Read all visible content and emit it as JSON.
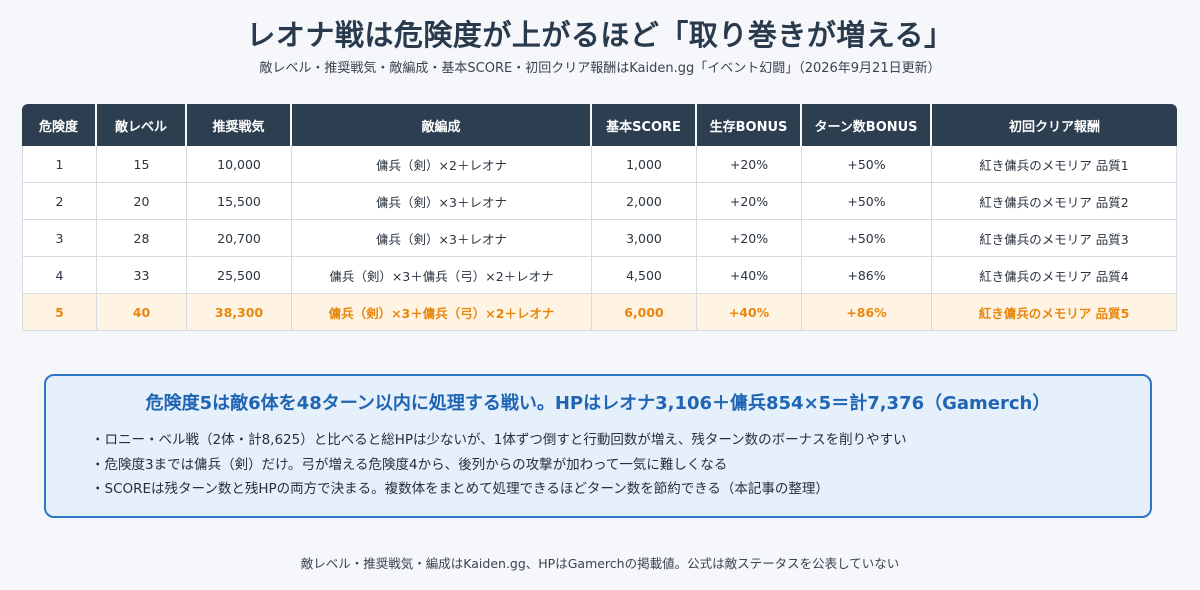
{
  "title": "レオナ戦は危険度が上がるほど「取り巻きが増える」",
  "subtitle": "敵レベル・推奨戦気・敵編成・基本SCORE・初回クリア報酬はKaiden.gg「イベント幻闘」（2026年9月21日更新）",
  "table": {
    "headers": [
      "危険度",
      "敵レベル",
      "推奨戦気",
      "敵編成",
      "基本SCORE",
      "生存BONUS",
      "ターン数BONUS",
      "初回クリア報酬"
    ],
    "rows": [
      [
        "1",
        "15",
        "10,000",
        "傭兵（剣）×2＋レオナ",
        "1,000",
        "+20%",
        "+50%",
        "紅き傭兵のメモリア 品質1"
      ],
      [
        "2",
        "20",
        "15,500",
        "傭兵（剣）×3＋レオナ",
        "2,000",
        "+20%",
        "+50%",
        "紅き傭兵のメモリア 品質2"
      ],
      [
        "3",
        "28",
        "20,700",
        "傭兵（剣）×3＋レオナ",
        "3,000",
        "+20%",
        "+50%",
        "紅き傭兵のメモリア 品質3"
      ],
      [
        "4",
        "33",
        "25,500",
        "傭兵（剣）×3＋傭兵（弓）×2＋レオナ",
        "4,500",
        "+40%",
        "+86%",
        "紅き傭兵のメモリア 品質4"
      ],
      [
        "5",
        "40",
        "38,300",
        "傭兵（剣）×3＋傭兵（弓）×2＋レオナ",
        "6,000",
        "+40%",
        "+86%",
        "紅き傭兵のメモリア 品質5"
      ]
    ],
    "highlight_row": 4,
    "highlight_color": "#e8870e",
    "header_color": "#2c3e50"
  },
  "callout": {
    "title": "危険度5は敵6体を48ターン以内に処理する戦い。HPはレオナ3,106＋傭兵854×5＝計7,376（Gamerch）",
    "points": [
      "・ロニー・ベル戦（2体・計8,625）と比べると総HPは少ないが、1体ずつ倒すと行動回数が増え、残ターン数のボーナスを削りやすい",
      "・危険度3までは傭兵（剣）だけ。弓が増える危険度4から、後列からの攻撃が加わって一気に難しくなる",
      "・SCOREは残ターン数と残HPの両方で決まる。複数体をまとめて処理できるほどターン数を節約できる（本記事の整理）"
    ],
    "accent_color": "#1f65b3"
  },
  "footer": "敵レベル・推奨戦気・編成はKaiden.gg、HPはGamerchの掲載値。公式は敵ステータスを公表していない"
}
